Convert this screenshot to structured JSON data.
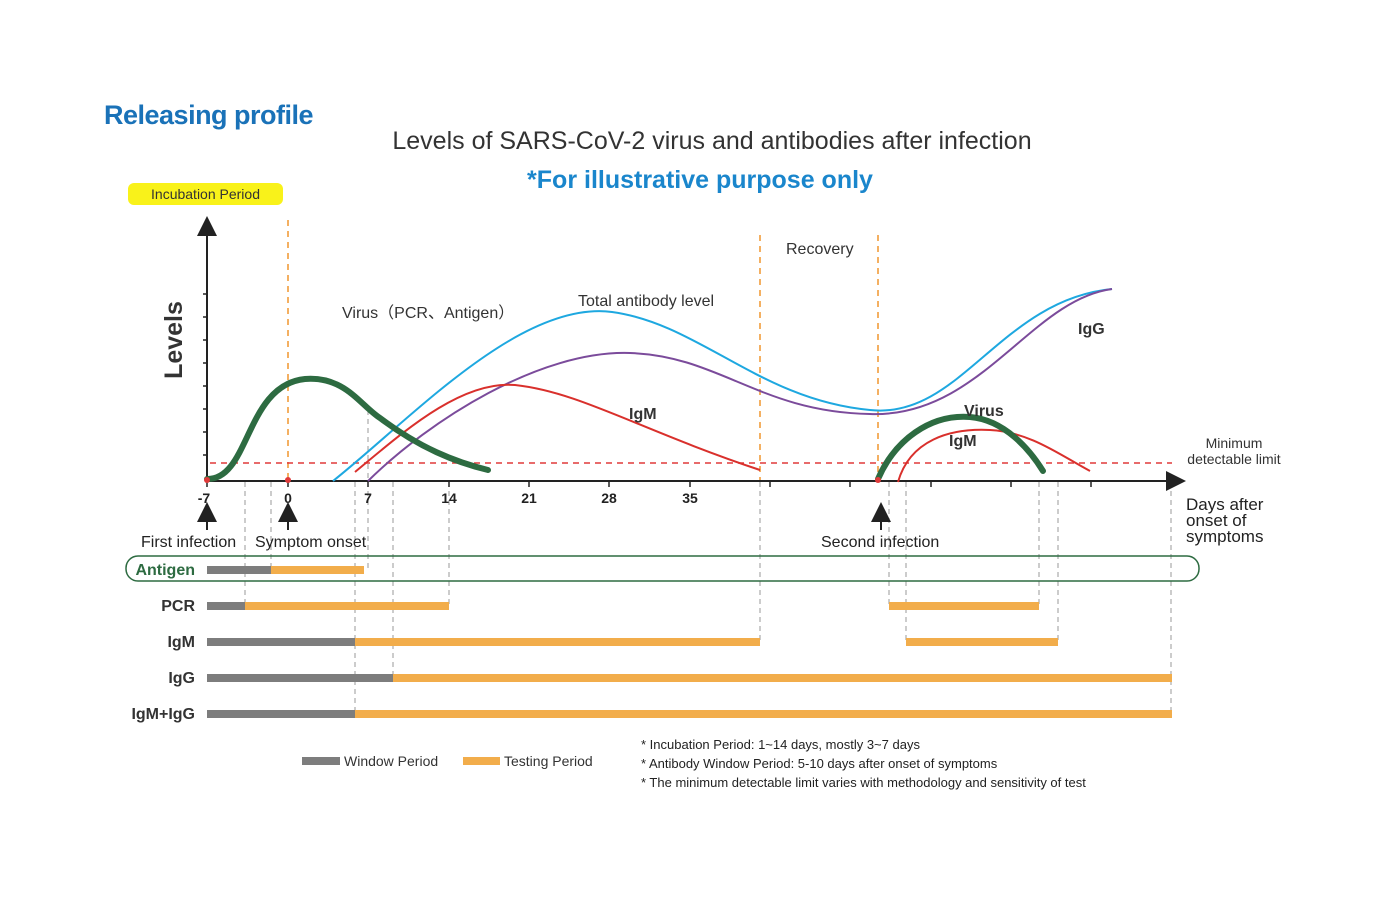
{
  "header": {
    "section_title": "Releasing profile",
    "main_title": "Levels of SARS-CoV-2 virus and antibodies after infection",
    "subtitle": "*For illustrative purpose only"
  },
  "incubation_badge": "Incubation Period",
  "axes": {
    "y_label": "Levels",
    "x_label_lines": [
      "Days after",
      "onset of",
      "symptoms"
    ],
    "x_ticks": [
      "-7",
      "0",
      "7",
      "14",
      "21",
      "28",
      "35"
    ]
  },
  "labels": {
    "recovery": "Recovery",
    "virus_first": "Virus（PCR、Antigen）",
    "total_antibody": "Total antibody level",
    "igm_first": "IgM",
    "igg": "IgG",
    "virus_second": "Virus",
    "igm_second": "IgM",
    "min_limit_lines": [
      "Minimum",
      "detectable limit"
    ],
    "first_infection": "First infection",
    "symptom_onset": "Symptom onset",
    "second_infection": "Second infection"
  },
  "test_rows": [
    {
      "label": "Antigen"
    },
    {
      "label": "PCR"
    },
    {
      "label": "IgM"
    },
    {
      "label": "IgG"
    },
    {
      "label": "IgM+IgG"
    }
  ],
  "legend": {
    "window": "Window Period",
    "testing": "Testing Period"
  },
  "notes": [
    "* Incubation Period: 1~14 days, mostly 3~7 days",
    "* Antibody Window Period:   5-10 days after onset of symptoms",
    "* The minimum detectable limit varies with methodology and sensitivity of test"
  ],
  "colors": {
    "virus": "#2d6b41",
    "total_antibody": "#1ea8e0",
    "igg": "#7b4b9b",
    "igm": "#d9302c",
    "window_bar": "#7d7d7d",
    "testing_bar": "#f2ad4b",
    "threshold": "#e03a3a",
    "guide": "#f0952e",
    "title_blue": "#1a72b8",
    "antigen_green": "#2d6b41"
  }
}
